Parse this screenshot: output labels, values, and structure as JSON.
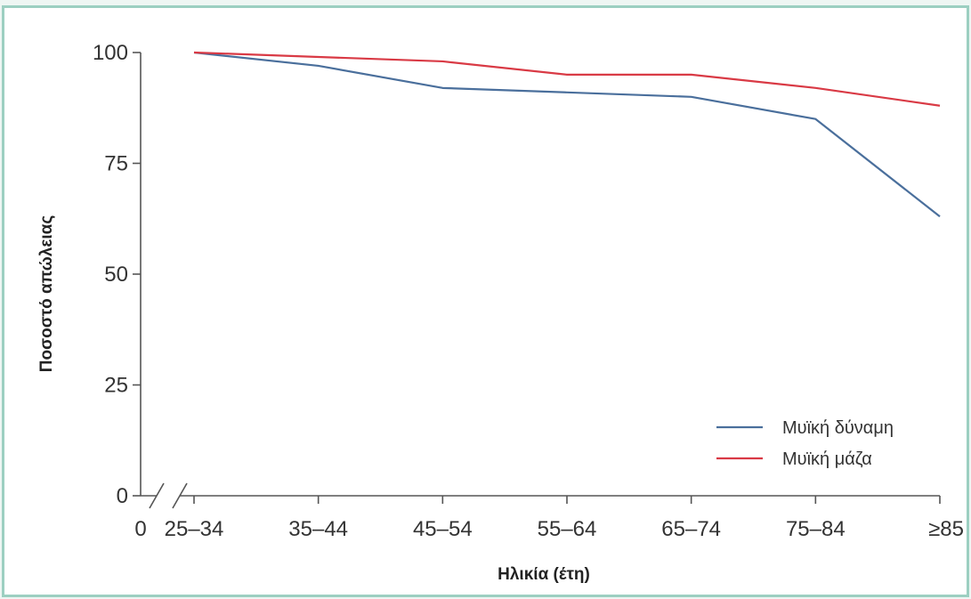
{
  "chart_data": {
    "type": "line",
    "xlabel": "Ηλικία (έτη)",
    "ylabel": "Ποσοστό απώλειας",
    "categories": [
      "25–34",
      "35–44",
      "45–54",
      "55–64",
      "65–74",
      "75–84",
      "≥85"
    ],
    "x_origin_label": "0",
    "axis_break": true,
    "ylim": [
      0,
      100
    ],
    "yticks": [
      0,
      25,
      50,
      75,
      100
    ],
    "grid": false,
    "legend_position": "bottom-right",
    "series": [
      {
        "name": "Μυϊκή δύναμη",
        "color": "#4a6f9c",
        "values": [
          100,
          97,
          92,
          91,
          90,
          85,
          63
        ]
      },
      {
        "name": "Μυϊκή μάζα",
        "color": "#d93a45",
        "values": [
          100,
          99,
          98,
          95,
          95,
          92,
          88
        ]
      }
    ]
  }
}
